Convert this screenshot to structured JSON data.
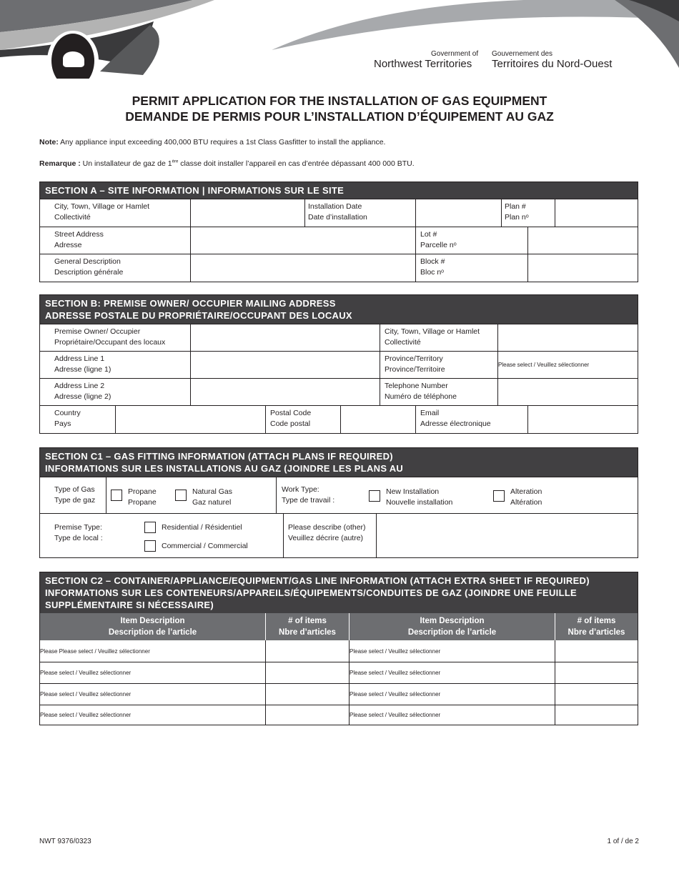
{
  "header": {
    "gov_en_small": "Government of",
    "gov_en_big": "Northwest Territories",
    "gov_fr_small": "Gouvernement des",
    "gov_fr_big": "Territoires du Nord-Ouest"
  },
  "title": {
    "en": "PERMIT APPLICATION FOR THE INSTALLATION OF GAS EQUIPMENT",
    "fr": "DEMANDE DE PERMIS POUR L’INSTALLATION D’ÉQUIPEMENT AU GAZ"
  },
  "notes": {
    "note_label": "Note:",
    "note_text": " Any appliance input exceeding 400,000 BTU requires a 1st Class Gasfitter to install the appliance.",
    "remarque_label": "Remarque :",
    "remarque_pre": " Un installateur de gaz de 1",
    "remarque_sup": "ère",
    "remarque_post": " classe doit installer l’appareil en cas d’entrée dépassant 400 000 BTU."
  },
  "section_a": {
    "title": "SECTION A – SITE INFORMATION | INFORMATIONS SUR LE SITE",
    "city": [
      "City, Town, Village or Hamlet",
      "Collectivité"
    ],
    "install_date": [
      "Installation Date",
      "Date d’installation"
    ],
    "plan": [
      "Plan #",
      "Plan nᵒ"
    ],
    "street": [
      "Street Address",
      "Adresse"
    ],
    "lot": [
      "Lot #",
      "Parcelle nᵒ"
    ],
    "general": [
      "General Description",
      "Description générale"
    ],
    "block": [
      "Block #",
      "Bloc nᵒ"
    ]
  },
  "section_b": {
    "title1": "SECTION B: PREMISE OWNER/ OCCUPIER MAILING ADDRESS",
    "title2": "ADRESSE POSTALE DU PROPRIÉTAIRE/OCCUPANT DES LOCAUX",
    "owner": [
      "Premise Owner/ Occupier",
      "Propriétaire/Occupant des locaux"
    ],
    "city": [
      "City, Town, Village or Hamlet",
      "Collectivité"
    ],
    "addr1": [
      "Address Line 1",
      "Adresse (ligne 1)"
    ],
    "province": [
      "Province/Territory",
      "Province/Territoire"
    ],
    "province_value": "Please select / Veuillez sélectionner",
    "addr2": [
      "Address Line 2",
      "Adresse (ligne 2)"
    ],
    "phone": [
      "Telephone Number",
      "Numéro de téléphone"
    ],
    "country": [
      "Country",
      "Pays"
    ],
    "postal": [
      "Postal Code",
      "Code postal"
    ],
    "email": [
      "Email",
      "Adresse électronique"
    ]
  },
  "section_c1": {
    "title1": "SECTION C1 – GAS FITTING INFORMATION (ATTACH PLANS IF REQUIRED)",
    "title2": "INFORMATIONS SUR LES INSTALLATIONS AU GAZ (JOINDRE LES PLANS AU",
    "gas_type": [
      "Type of Gas",
      "Type de gaz"
    ],
    "propane": [
      "Propane",
      "Propane"
    ],
    "natural": [
      "Natural Gas",
      "Gaz naturel"
    ],
    "work_type": [
      "Work Type:",
      "Type de travail :"
    ],
    "new_install": [
      "New Installation",
      "Nouvelle installation"
    ],
    "alteration": [
      "Alteration",
      "Altération"
    ],
    "premise_type": [
      "Premise Type:",
      "Type de local :"
    ],
    "residential": "Residential / Résidentiel",
    "commercial": "Commercial / Commercial",
    "describe": [
      "Please describe (other)",
      "Veuillez décrire (autre)"
    ]
  },
  "section_c2": {
    "title1": "SECTION C2 – CONTAINER/APPLIANCE/EQUIPMENT/GAS LINE INFORMATION (ATTACH EXTRA SHEET IF REQUIRED)",
    "title2": "INFORMATIONS SUR LES CONTENEURS/APPAREILS/ÉQUIPEMENTS/CONDUITES DE GAZ (JOINDRE UNE FEUILLE",
    "title3": "SUPPLÉMENTAIRE SI NÉCESSAIRE)",
    "headers": [
      [
        "Item Description",
        "Description de l’article"
      ],
      [
        "# of items",
        "Nbre d’articles"
      ],
      [
        "Item Description",
        "Description de l’article"
      ],
      [
        "# of items",
        "Nbre d’articles"
      ]
    ],
    "rows": [
      [
        "Please Please select / Veuillez sélectionner",
        "Please select / Veuillez sélectionner"
      ],
      [
        "Please select / Veuillez sélectionner",
        "Please select / Veuillez sélectionner"
      ],
      [
        "Please select / Veuillez sélectionner",
        "Please select / Veuillez sélectionner"
      ],
      [
        "Please select / Veuillez sélectionner",
        "Please select / Veuillez sélectionner"
      ]
    ]
  },
  "footer": {
    "form_no": "NWT 9376/0323",
    "page": "1 of / de 2"
  }
}
